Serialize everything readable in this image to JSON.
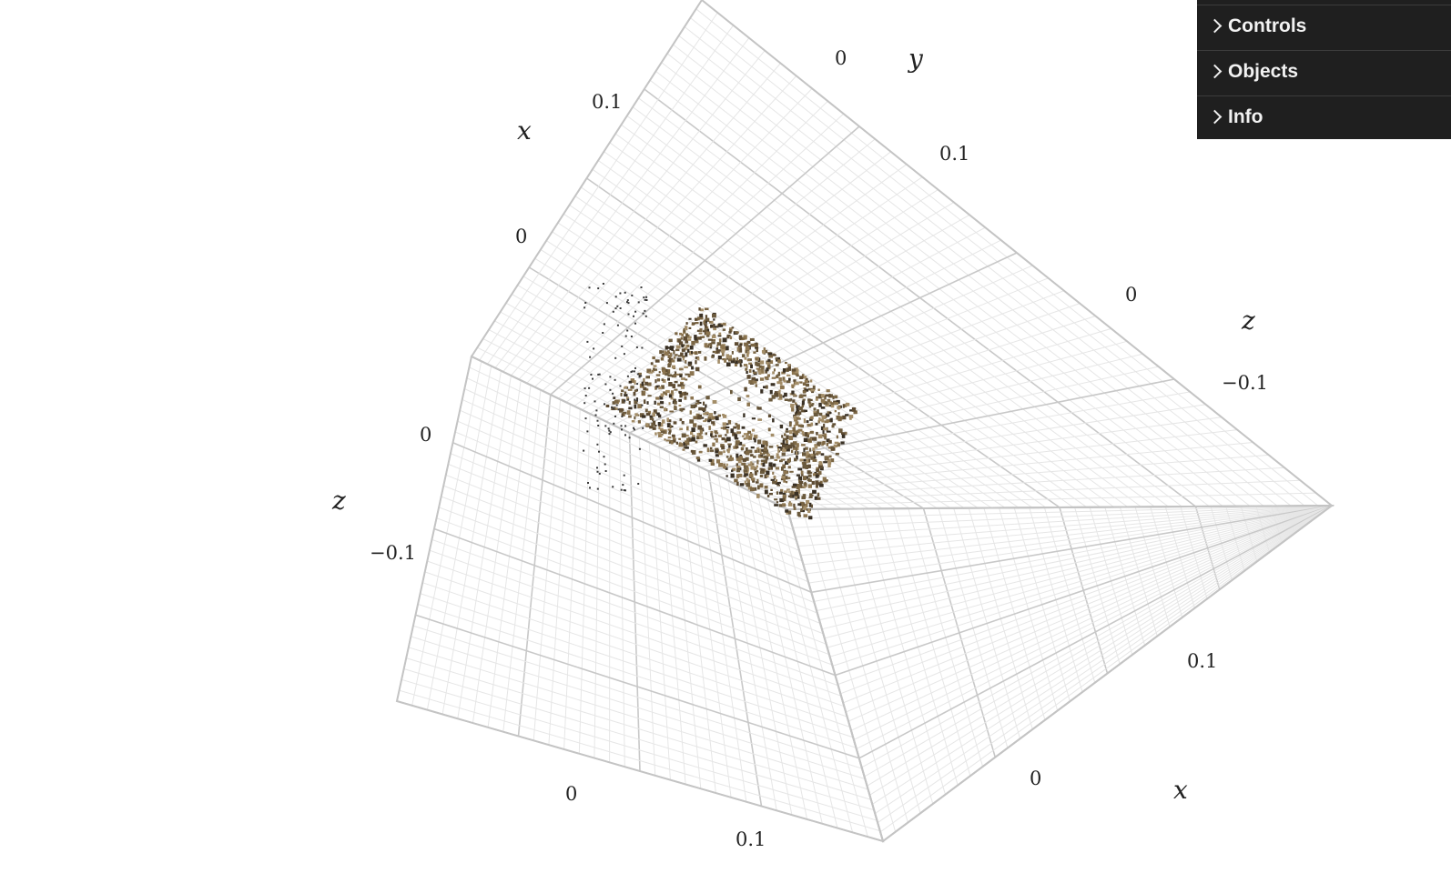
{
  "gui": {
    "folders": [
      {
        "label": "Controls",
        "icon": "chevron-right-icon"
      },
      {
        "label": "Objects",
        "icon": "chevron-right-icon"
      },
      {
        "label": "Info",
        "icon": "chevron-right-icon"
      }
    ]
  },
  "axes": {
    "titles": {
      "x_top": "x",
      "y_top": "y",
      "z_right": "z",
      "z_left": "z",
      "x_bottom_right": "x"
    },
    "ticks": {
      "x_top_01": "0.1",
      "x_top_0": "0",
      "y_top_0": "0",
      "y_top_01": "0.1",
      "z_right_0": "0",
      "z_right_m01": "−0.1",
      "z_left_0": "0",
      "z_left_m01": "−0.1",
      "x_bottom_0": "0",
      "x_bottom_01": "0.1",
      "x_right_01": "0.1",
      "x_right_0": "0"
    }
  },
  "point_cloud": {
    "colors": [
      "#7b6644",
      "#8c7550",
      "#5e4c33",
      "#a38d68",
      "#3a3125",
      "#6b5a3d"
    ]
  }
}
